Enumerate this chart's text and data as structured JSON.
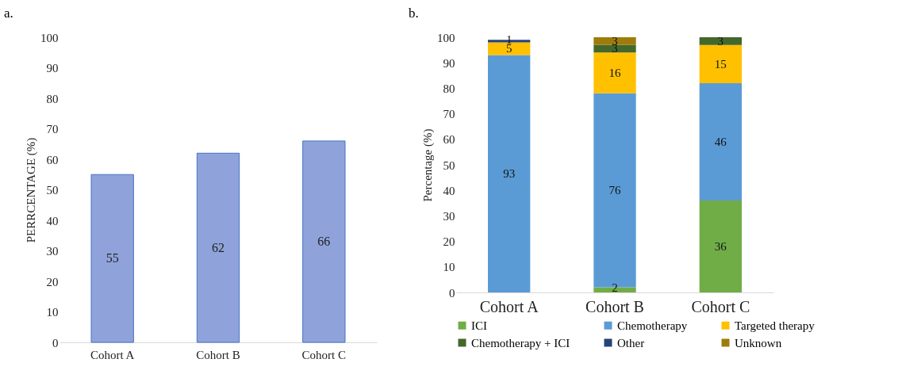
{
  "chart_data": [
    {
      "type": "bar",
      "title": "a.",
      "ylabel": "PERRCENTAGE  (%)",
      "categories": [
        "Cohort A",
        "Cohort B",
        "Cohort C"
      ],
      "values": [
        55,
        62,
        66
      ],
      "color": "#8fa3da",
      "ylim": [
        0,
        100
      ],
      "yticks": [
        0,
        10,
        20,
        30,
        40,
        50,
        60,
        70,
        80,
        90,
        100
      ],
      "grid": false,
      "data_labels": true
    },
    {
      "type": "bar",
      "title": "b.",
      "ylabel": "Percentage (%)",
      "categories": [
        "Cohort A",
        "Cohort B",
        "Cohort C"
      ],
      "stacked": true,
      "data_labels": true,
      "legend": "bottom",
      "grid": false,
      "ylim": [
        0,
        100
      ],
      "yticks": [
        0,
        10,
        20,
        30,
        40,
        50,
        60,
        70,
        80,
        90,
        100
      ],
      "series": [
        {
          "name": "ICI",
          "color": "#70ad47",
          "values": [
            null,
            2,
            36
          ]
        },
        {
          "name": "Chemotherapy",
          "color": "#5b9bd5",
          "values": [
            93,
            76,
            46
          ]
        },
        {
          "name": "Targeted therapy",
          "color": "#ffc000",
          "values": [
            5,
            16,
            15
          ]
        },
        {
          "name": "Chemotherapy + ICI",
          "color": "#43682b",
          "values": [
            null,
            3,
            3
          ]
        },
        {
          "name": "Other",
          "color": "#264478",
          "values": [
            1,
            null,
            null
          ]
        },
        {
          "name": "Unknown",
          "color": "#9e7c0c",
          "values": [
            null,
            3,
            null
          ]
        }
      ]
    }
  ]
}
